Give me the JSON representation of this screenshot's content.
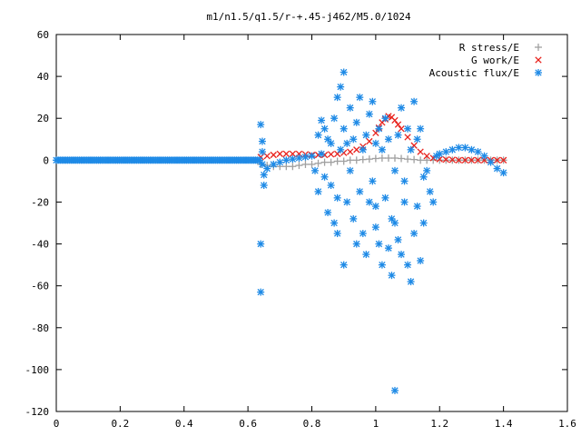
{
  "chart_data": {
    "type": "scatter",
    "title": "m1/n1.5/q1.5/r-+.45-j462/M5.0/1024",
    "xlabel": "",
    "ylabel": "",
    "xlim": [
      0,
      1.6
    ],
    "ylim": [
      -120,
      60
    ],
    "xticks": [
      "0",
      "0.2",
      "0.4",
      "0.6",
      "0.8",
      "1",
      "1.2",
      "1.4",
      "1.6"
    ],
    "yticks": [
      "60",
      "40",
      "20",
      "0",
      "-20",
      "-40",
      "-60",
      "-80",
      "-100",
      "-120"
    ],
    "grid": false,
    "legend_position": "top-right",
    "series": [
      {
        "name": "R stress/E",
        "color": "#a0a0a0",
        "marker": "plus",
        "x": [
          0.64,
          0.66,
          0.68,
          0.7,
          0.72,
          0.74,
          0.76,
          0.78,
          0.8,
          0.82,
          0.84,
          0.86,
          0.88,
          0.9,
          0.92,
          0.94,
          0.96,
          0.98,
          1.0,
          1.02,
          1.04,
          1.06,
          1.08,
          1.1,
          1.12,
          1.14,
          1.16,
          1.18,
          1.2,
          1.22,
          1.24,
          1.26,
          1.28,
          1.3,
          1.32,
          1.34,
          1.36,
          1.38,
          1.4
        ],
        "y": [
          -2,
          -2.5,
          -3,
          -3,
          -3,
          -3,
          -2.5,
          -2,
          -2,
          -1.5,
          -1,
          -1,
          -0.5,
          -0.5,
          0,
          0,
          0.3,
          0.5,
          0.8,
          1,
          1,
          1,
          0.8,
          0.5,
          0.3,
          0,
          0,
          0,
          0,
          0,
          0,
          0,
          0,
          0,
          0,
          0,
          0,
          0,
          0
        ]
      },
      {
        "name": "G work/E",
        "color": "#e8211c",
        "marker": "cross",
        "x": [
          0.64,
          0.66,
          0.68,
          0.7,
          0.72,
          0.74,
          0.76,
          0.78,
          0.8,
          0.82,
          0.84,
          0.86,
          0.88,
          0.9,
          0.92,
          0.94,
          0.96,
          0.98,
          1.0,
          1.01,
          1.02,
          1.03,
          1.04,
          1.05,
          1.06,
          1.07,
          1.08,
          1.1,
          1.12,
          1.14,
          1.16,
          1.18,
          1.2,
          1.22,
          1.24,
          1.26,
          1.28,
          1.3,
          1.32,
          1.34,
          1.36,
          1.38,
          1.4
        ],
        "y": [
          1.5,
          2,
          2.5,
          3,
          3,
          3,
          3,
          2.8,
          2.5,
          2.5,
          2.5,
          2.8,
          3,
          3.5,
          4,
          5,
          6.5,
          9,
          13,
          15.5,
          18,
          19.5,
          21,
          20.5,
          19,
          17,
          15,
          11,
          7,
          4,
          2,
          1,
          0.5,
          0.3,
          0.2,
          0,
          0,
          0,
          0,
          0,
          0,
          0,
          0
        ]
      },
      {
        "name": "Acoustic flux/E",
        "color": "#1e8ae6",
        "marker": "star",
        "x": [
          0.64,
          0.64,
          0.64,
          0.645,
          0.645,
          0.645,
          0.65,
          0.65,
          0.66,
          0.68,
          0.7,
          0.72,
          0.74,
          0.76,
          0.78,
          0.8,
          0.81,
          0.82,
          0.82,
          0.83,
          0.83,
          0.84,
          0.84,
          0.85,
          0.85,
          0.86,
          0.86,
          0.87,
          0.87,
          0.88,
          0.88,
          0.88,
          0.89,
          0.89,
          0.9,
          0.9,
          0.9,
          0.91,
          0.91,
          0.92,
          0.92,
          0.93,
          0.93,
          0.94,
          0.94,
          0.95,
          0.95,
          0.96,
          0.96,
          0.97,
          0.97,
          0.98,
          0.98,
          0.99,
          0.99,
          1.0,
          1.0,
          1.0,
          1.01,
          1.01,
          1.02,
          1.02,
          1.03,
          1.03,
          1.04,
          1.04,
          1.05,
          1.05,
          1.06,
          1.06,
          1.06,
          1.07,
          1.07,
          1.08,
          1.08,
          1.09,
          1.09,
          1.1,
          1.1,
          1.11,
          1.11,
          1.12,
          1.12,
          1.13,
          1.13,
          1.14,
          1.14,
          1.15,
          1.15,
          1.16,
          1.17,
          1.18,
          1.19,
          1.2,
          1.22,
          1.24,
          1.26,
          1.28,
          1.3,
          1.32,
          1.34,
          1.36,
          1.38,
          1.4
        ],
        "y": [
          -40,
          -63,
          17,
          9,
          4,
          -2,
          -7,
          -12,
          -4,
          -2,
          -1,
          0,
          0.5,
          1,
          1.5,
          2,
          -5,
          12,
          -15,
          3,
          19,
          -8,
          15,
          -25,
          10,
          -12,
          8,
          -30,
          20,
          -18,
          30,
          -35,
          35,
          5,
          42,
          -50,
          15,
          -20,
          8,
          -5,
          25,
          -28,
          10,
          -40,
          18,
          -15,
          30,
          5,
          -35,
          12,
          -45,
          22,
          -20,
          28,
          -10,
          -22,
          8,
          -32,
          15,
          -40,
          5,
          -50,
          -18,
          20,
          -42,
          10,
          -55,
          -28,
          -30,
          -110,
          -5,
          -38,
          12,
          -45,
          25,
          -20,
          -10,
          15,
          -50,
          -58,
          5,
          -35,
          28,
          -22,
          10,
          -48,
          15,
          -30,
          -8,
          -5,
          -15,
          -20,
          2,
          3,
          4,
          5,
          6,
          6,
          5,
          4,
          2,
          -1,
          -4,
          -6
        ]
      }
    ]
  }
}
